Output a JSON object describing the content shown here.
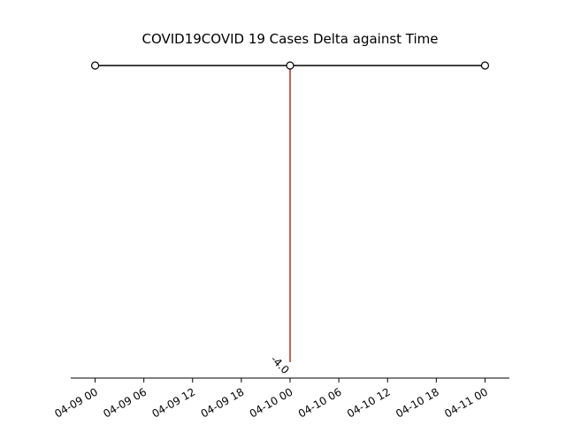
{
  "chart_data": {
    "type": "line",
    "title": "COVID19COVID 19 Cases Delta against Time",
    "xlabel": "",
    "ylabel": "",
    "grid": false,
    "x_tick_labels": [
      "04-09 00",
      "04-09 06",
      "04-09 12",
      "04-09 18",
      "04-10 00",
      "04-10 06",
      "04-10 12",
      "04-10 18",
      "04-11 00"
    ],
    "x_ticks": [
      "2020-04-09T00:00",
      "2020-04-09T06:00",
      "2020-04-09T12:00",
      "2020-04-09T18:00",
      "2020-04-10T00:00",
      "2020-04-10T06:00",
      "2020-04-10T12:00",
      "2020-04-10T18:00",
      "2020-04-11T00:00"
    ],
    "xlim": [
      "2020-04-08T21:00",
      "2020-04-11T03:00"
    ],
    "timeline": {
      "x": [
        "2020-04-09T00:00",
        "2020-04-10T00:00",
        "2020-04-11T00:00"
      ],
      "line_color": "#000000",
      "marker_face": "#ffffff"
    },
    "stems": [
      {
        "x": "2020-04-10T00:00",
        "value": -4.0,
        "label": "-4.0",
        "color": "#c0392b"
      }
    ]
  }
}
